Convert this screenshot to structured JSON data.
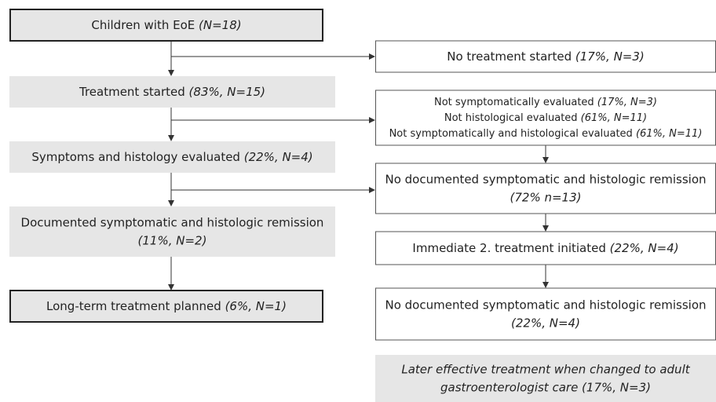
{
  "nodes": [
    {
      "lines": [
        {
          "text": "Children with EoE ",
          "detail": "(N=18)"
        }
      ]
    },
    {
      "lines": [
        {
          "text": "Treatment started ",
          "detail": "(83%, N=15)"
        }
      ]
    },
    {
      "lines": [
        {
          "text": "Symptoms and histology evaluated ",
          "detail": "(22%, N=4)"
        }
      ]
    },
    {
      "lines": [
        {
          "text": "Documented symptomatic and histologic remission"
        },
        {
          "detail": "(11%, N=2)"
        }
      ]
    },
    {
      "lines": [
        {
          "text": "Long-term treatment planned ",
          "detail": "(6%, N=1)"
        }
      ]
    },
    {
      "lines": [
        {
          "text": "No treatment started ",
          "detail": "(17%, N=3)"
        }
      ]
    },
    {
      "lines": [
        {
          "text": "Not symptomatically evaluated ",
          "detail": "(17%, N=3)"
        },
        {
          "text": "Not histological evaluated ",
          "detail": "(61%, N=11)"
        },
        {
          "text": "Not symptomatically and histological evaluated ",
          "detail": "(61%, N=11)"
        }
      ]
    },
    {
      "lines": [
        {
          "text": "No documented symptomatic and histologic remission"
        },
        {
          "detail": "(72% n=13)"
        }
      ]
    },
    {
      "lines": [
        {
          "text": "Immediate 2. treatment initiated ",
          "detail": "(22%, N=4)"
        }
      ]
    },
    {
      "lines": [
        {
          "text": "No documented symptomatic and histologic remission"
        },
        {
          "detail": "(22%, N=4)"
        }
      ]
    },
    {
      "lines": [
        {
          "detail": "Later effective treatment when changed to adult"
        },
        {
          "detail": "gastroenterologist care (17%, N=3)"
        }
      ]
    }
  ]
}
